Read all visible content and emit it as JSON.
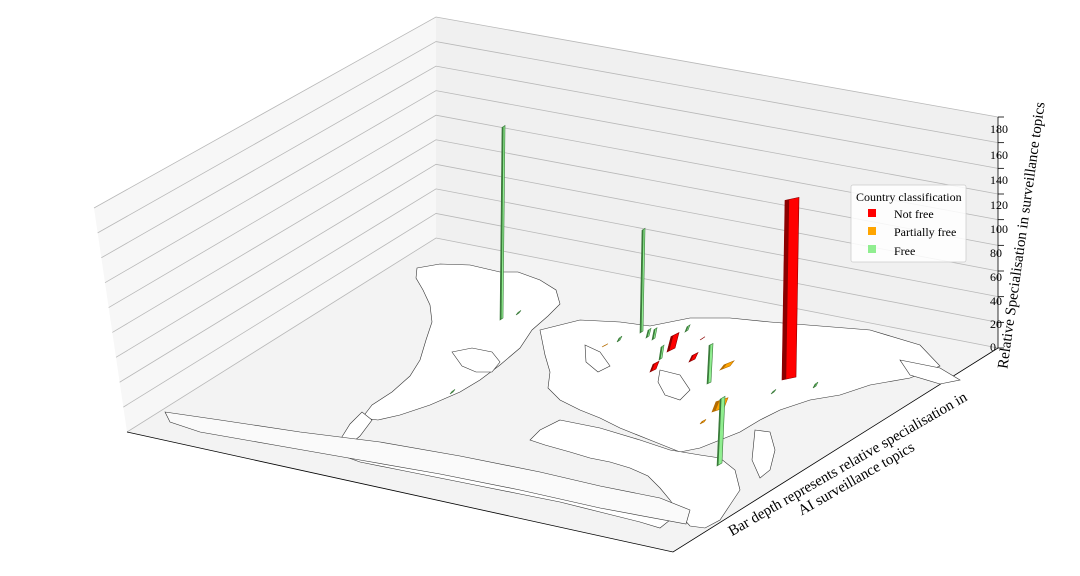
{
  "chart_data": {
    "type": "bar",
    "projection": "3d",
    "zlabel": "Relative Specialisation in surveillance topics",
    "ylabel_line1": "Bar depth represents relative specialisation in",
    "ylabel_line2": "AI surveillance topics",
    "zlim": [
      0,
      180
    ],
    "zticks": [
      "0",
      "20",
      "40",
      "60",
      "80",
      "100",
      "120",
      "140",
      "160",
      "180"
    ],
    "grid": true,
    "legend": {
      "title": "Country classification",
      "placement": "right",
      "entries": [
        {
          "label": "Not free",
          "color": "#ff0000"
        },
        {
          "label": "Partially free",
          "color": "#ffa500"
        },
        {
          "label": "Free",
          "color": "#90ee90"
        }
      ]
    },
    "series": [
      {
        "category": "Not free",
        "values": [
          140,
          12,
          5,
          6,
          1
        ]
      },
      {
        "category": "Partially free",
        "values": [
          1,
          4,
          8,
          2
        ]
      },
      {
        "category": "Free",
        "values": [
          150,
          80,
          3,
          8,
          10,
          6,
          4,
          30,
          52,
          2,
          2,
          3,
          2
        ]
      }
    ]
  }
}
